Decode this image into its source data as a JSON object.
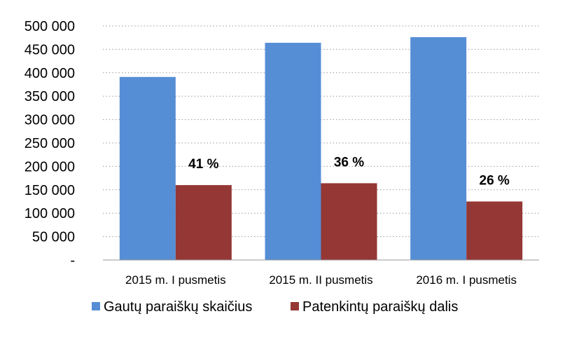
{
  "chart_data": {
    "type": "bar",
    "categories": [
      "2015 m. I pusmetis",
      "2015 m. II pusmetis",
      "2016 m. I pusmetis"
    ],
    "series": [
      {
        "name": "Gautų paraiškų skaičius",
        "values": [
          391000,
          464000,
          476000
        ],
        "color": "#558ed5"
      },
      {
        "name": "Patenkintų paraiškų dalis",
        "values": [
          160000,
          164000,
          125000
        ],
        "color": "#953735"
      }
    ],
    "data_labels": [
      "41 %",
      "36 %",
      "26 %"
    ],
    "ylim": [
      0,
      500000
    ],
    "yticks": [
      0,
      50000,
      100000,
      150000,
      200000,
      250000,
      300000,
      350000,
      400000,
      450000,
      500000
    ],
    "ytick_labels": [
      "-",
      "50 000",
      "100 000",
      "150 000",
      "200 000",
      "250 000",
      "300 000",
      "350 000",
      "400 000",
      "450 000",
      "500 000"
    ],
    "grid": "dotted horizontal",
    "legend_position": "bottom"
  }
}
